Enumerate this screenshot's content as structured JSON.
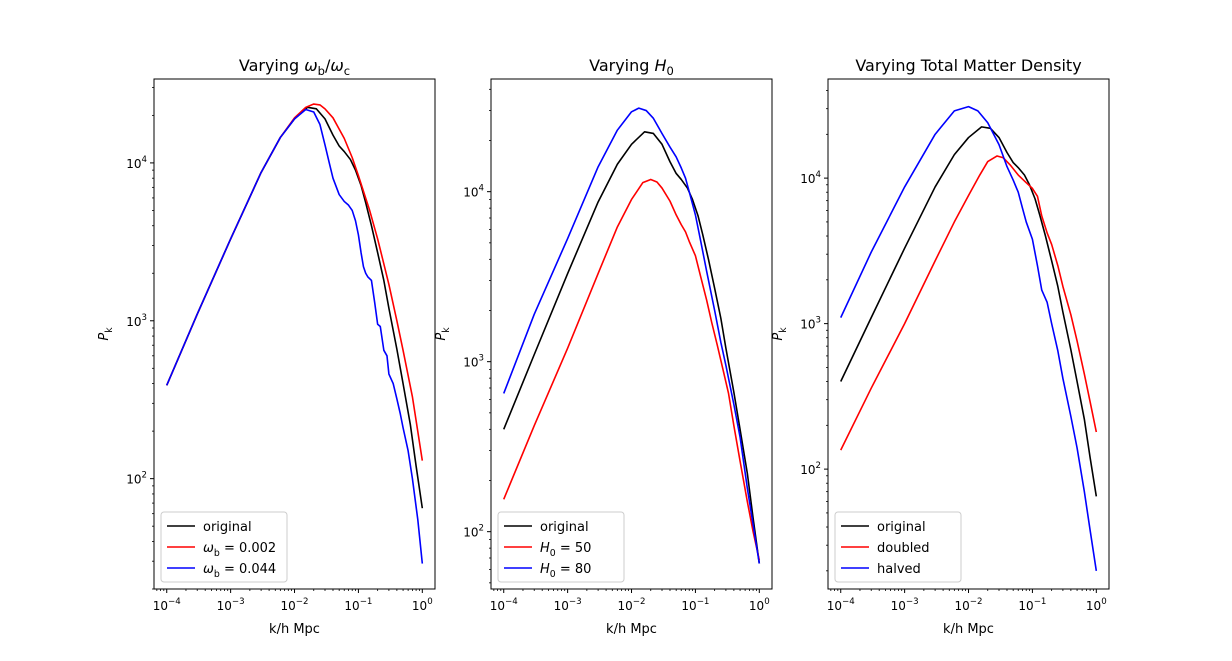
{
  "chart_data": [
    {
      "type": "line",
      "title": "Varying ωb/ωc",
      "title_parts": [
        {
          "t": "Varying "
        },
        {
          "t": "ω",
          "i": true
        },
        {
          "t": "b",
          "sub": true
        },
        {
          "t": "/"
        },
        {
          "t": "ω",
          "i": true
        },
        {
          "t": "c",
          "sub": true
        }
      ],
      "xlabel": "k/h Mpc",
      "ylabel": "Pk",
      "ylabel_parts": [
        {
          "t": "P",
          "i": true
        },
        {
          "t": "k",
          "sub": true
        }
      ],
      "xscale": "log",
      "yscale": "log",
      "xlim": [
        6.32e-05,
        1.58
      ],
      "ylim": [
        20,
        34000
      ],
      "xticks": [
        0.0001,
        0.001,
        0.01,
        0.1,
        1
      ],
      "xtick_labels": [
        [
          {
            "t": "10"
          },
          {
            "t": "−4",
            "sup": true
          }
        ],
        [
          {
            "t": "10"
          },
          {
            "t": "−3",
            "sup": true
          }
        ],
        [
          {
            "t": "10"
          },
          {
            "t": "−2",
            "sup": true
          }
        ],
        [
          {
            "t": "10"
          },
          {
            "t": "−1",
            "sup": true
          }
        ],
        [
          {
            "t": "10"
          },
          {
            "t": "0",
            "sup": true
          }
        ]
      ],
      "yticks": [
        100,
        1000,
        10000
      ],
      "ytick_labels": [
        [
          {
            "t": "10"
          },
          {
            "t": "2",
            "sup": true
          }
        ],
        [
          {
            "t": "10"
          },
          {
            "t": "3",
            "sup": true
          }
        ],
        [
          {
            "t": "10"
          },
          {
            "t": "4",
            "sup": true
          }
        ]
      ],
      "grid": false,
      "legend": "lower-left",
      "series": [
        {
          "name": "original",
          "legend_parts": [
            {
              "t": "original"
            }
          ],
          "color": "#000000",
          "x": [
            0.0001,
            0.0003,
            0.001,
            0.003,
            0.006,
            0.01,
            0.016,
            0.022,
            0.03,
            0.04,
            0.05,
            0.06,
            0.075,
            0.09,
            0.11,
            0.13,
            0.16,
            0.2,
            0.25,
            0.3,
            0.4,
            0.5,
            0.65,
            0.8,
            1.0
          ],
          "y": [
            390,
            1100,
            3300,
            8700,
            14500,
            19000,
            22500,
            22000,
            19000,
            15000,
            12800,
            11800,
            10500,
            9000,
            7200,
            5600,
            4000,
            2700,
            1800,
            1200,
            660,
            400,
            220,
            120,
            65
          ]
        },
        {
          "name": "ωb = 0.002",
          "legend_parts": [
            {
              "t": "ω",
              "i": true
            },
            {
              "t": "b",
              "sub": true
            },
            {
              "t": " = 0.002"
            }
          ],
          "color": "#ff0000",
          "x": [
            0.0001,
            0.0003,
            0.001,
            0.003,
            0.006,
            0.01,
            0.015,
            0.02,
            0.025,
            0.03,
            0.04,
            0.06,
            0.08,
            0.1,
            0.15,
            0.2,
            0.3,
            0.4,
            0.5,
            0.7,
            1.0
          ],
          "y": [
            390,
            1100,
            3300,
            8700,
            14500,
            19300,
            22500,
            23600,
            23300,
            22000,
            19300,
            14300,
            10800,
            8300,
            5000,
            3300,
            1700,
            1000,
            650,
            330,
            130
          ]
        },
        {
          "name": "ωb = 0.044",
          "legend_parts": [
            {
              "t": "ω",
              "i": true
            },
            {
              "t": "b",
              "sub": true
            },
            {
              "t": " = 0.044"
            }
          ],
          "color": "#0000ff",
          "x": [
            0.0001,
            0.0003,
            0.001,
            0.003,
            0.006,
            0.01,
            0.015,
            0.02,
            0.025,
            0.03,
            0.035,
            0.04,
            0.05,
            0.06,
            0.07,
            0.08,
            0.09,
            0.1,
            0.11,
            0.12,
            0.13,
            0.14,
            0.16,
            0.18,
            0.2,
            0.22,
            0.25,
            0.28,
            0.3,
            0.35,
            0.4,
            0.45,
            0.5,
            0.6,
            0.7,
            0.85,
            1.0
          ],
          "y": [
            390,
            1100,
            3300,
            8700,
            14500,
            19000,
            21800,
            21000,
            17500,
            13000,
            10000,
            8000,
            6300,
            5700,
            5400,
            5000,
            4300,
            3500,
            2700,
            2200,
            2000,
            1900,
            1800,
            1300,
            950,
            920,
            650,
            600,
            460,
            400,
            320,
            260,
            210,
            150,
            100,
            55,
            29
          ]
        }
      ]
    },
    {
      "type": "line",
      "title": "Varying H0",
      "title_parts": [
        {
          "t": "Varying "
        },
        {
          "t": "H",
          "i": true
        },
        {
          "t": "0",
          "sub": true
        }
      ],
      "xlabel": "k/h Mpc",
      "ylabel": "Pk",
      "ylabel_parts": [
        {
          "t": "P",
          "i": true
        },
        {
          "t": "k",
          "sub": true
        }
      ],
      "xscale": "log",
      "yscale": "log",
      "xlim": [
        6.32e-05,
        1.58
      ],
      "ylim": [
        46,
        46000
      ],
      "xticks": [
        0.0001,
        0.001,
        0.01,
        0.1,
        1
      ],
      "xtick_labels": [
        [
          {
            "t": "10"
          },
          {
            "t": "−4",
            "sup": true
          }
        ],
        [
          {
            "t": "10"
          },
          {
            "t": "−3",
            "sup": true
          }
        ],
        [
          {
            "t": "10"
          },
          {
            "t": "−2",
            "sup": true
          }
        ],
        [
          {
            "t": "10"
          },
          {
            "t": "−1",
            "sup": true
          }
        ],
        [
          {
            "t": "10"
          },
          {
            "t": "0",
            "sup": true
          }
        ]
      ],
      "yticks": [
        100,
        1000,
        10000
      ],
      "ytick_labels": [
        [
          {
            "t": "10"
          },
          {
            "t": "2",
            "sup": true
          }
        ],
        [
          {
            "t": "10"
          },
          {
            "t": "3",
            "sup": true
          }
        ],
        [
          {
            "t": "10"
          },
          {
            "t": "4",
            "sup": true
          }
        ]
      ],
      "grid": false,
      "legend": "lower-left",
      "series": [
        {
          "name": "original",
          "legend_parts": [
            {
              "t": "original"
            }
          ],
          "color": "#000000",
          "x": [
            0.0001,
            0.0003,
            0.001,
            0.003,
            0.006,
            0.01,
            0.016,
            0.022,
            0.03,
            0.04,
            0.05,
            0.06,
            0.075,
            0.09,
            0.11,
            0.13,
            0.16,
            0.2,
            0.25,
            0.3,
            0.4,
            0.5,
            0.65,
            0.8,
            1.0
          ],
          "y": [
            400,
            1100,
            3300,
            8700,
            14500,
            19000,
            22500,
            22000,
            19000,
            15000,
            12800,
            11800,
            10500,
            9000,
            7200,
            5600,
            4000,
            2700,
            1800,
            1200,
            660,
            400,
            220,
            120,
            65
          ]
        },
        {
          "name": "H0 = 50",
          "legend_parts": [
            {
              "t": "H",
              "i": true
            },
            {
              "t": "0",
              "sub": true
            },
            {
              "t": " = 50"
            }
          ],
          "color": "#ff0000",
          "x": [
            0.0001,
            0.0003,
            0.001,
            0.003,
            0.006,
            0.01,
            0.015,
            0.02,
            0.025,
            0.03,
            0.04,
            0.05,
            0.06,
            0.07,
            0.08,
            0.1,
            0.12,
            0.15,
            0.18,
            0.22,
            0.27,
            0.33,
            0.4,
            0.5,
            0.65,
            0.8,
            1.0
          ],
          "y": [
            155,
            420,
            1200,
            3300,
            6200,
            9000,
            11300,
            11800,
            11400,
            10500,
            8800,
            7300,
            6400,
            5800,
            5100,
            4200,
            3200,
            2300,
            1700,
            1250,
            900,
            650,
            420,
            260,
            150,
            100,
            68
          ]
        },
        {
          "name": "H0 = 80",
          "legend_parts": [
            {
              "t": "H",
              "i": true
            },
            {
              "t": "0",
              "sub": true
            },
            {
              "t": " = 80"
            }
          ],
          "color": "#0000ff",
          "x": [
            0.0001,
            0.0003,
            0.001,
            0.003,
            0.006,
            0.01,
            0.013,
            0.017,
            0.022,
            0.03,
            0.04,
            0.05,
            0.06,
            0.07,
            0.08,
            0.1,
            0.12,
            0.15,
            0.2,
            0.25,
            0.3,
            0.4,
            0.5,
            0.65,
            0.8,
            1.0
          ],
          "y": [
            650,
            1900,
            5300,
            14000,
            23000,
            29500,
            31000,
            30000,
            27000,
            22000,
            18300,
            16000,
            13800,
            12000,
            10000,
            7300,
            5200,
            3400,
            2000,
            1300,
            950,
            560,
            360,
            180,
            110,
            65
          ]
        }
      ]
    },
    {
      "type": "line",
      "title": "Varying Total Matter Density",
      "title_parts": [
        {
          "t": "Varying Total Matter Density"
        }
      ],
      "xlabel": "k/h Mpc",
      "ylabel": "Pk",
      "ylabel_parts": [
        {
          "t": "P",
          "i": true
        },
        {
          "t": "k",
          "sub": true
        }
      ],
      "xscale": "log",
      "yscale": "log",
      "xlim": [
        6.32e-05,
        1.58
      ],
      "ylim": [
        15,
        48000
      ],
      "xticks": [
        0.0001,
        0.001,
        0.01,
        0.1,
        1
      ],
      "xtick_labels": [
        [
          {
            "t": "10"
          },
          {
            "t": "−4",
            "sup": true
          }
        ],
        [
          {
            "t": "10"
          },
          {
            "t": "−3",
            "sup": true
          }
        ],
        [
          {
            "t": "10"
          },
          {
            "t": "−2",
            "sup": true
          }
        ],
        [
          {
            "t": "10"
          },
          {
            "t": "−1",
            "sup": true
          }
        ],
        [
          {
            "t": "10"
          },
          {
            "t": "0",
            "sup": true
          }
        ]
      ],
      "yticks": [
        100,
        1000,
        10000
      ],
      "ytick_labels": [
        [
          {
            "t": "10"
          },
          {
            "t": "2",
            "sup": true
          }
        ],
        [
          {
            "t": "10"
          },
          {
            "t": "3",
            "sup": true
          }
        ],
        [
          {
            "t": "10"
          },
          {
            "t": "4",
            "sup": true
          }
        ]
      ],
      "grid": false,
      "legend": "lower-left",
      "series": [
        {
          "name": "original",
          "legend_parts": [
            {
              "t": "original"
            }
          ],
          "color": "#000000",
          "x": [
            0.0001,
            0.0003,
            0.001,
            0.003,
            0.006,
            0.01,
            0.016,
            0.022,
            0.03,
            0.04,
            0.05,
            0.06,
            0.075,
            0.09,
            0.11,
            0.13,
            0.16,
            0.2,
            0.25,
            0.3,
            0.4,
            0.5,
            0.65,
            0.8,
            1.0
          ],
          "y": [
            400,
            1100,
            3300,
            8700,
            14500,
            19000,
            22500,
            22000,
            19000,
            15000,
            12800,
            11800,
            10500,
            9000,
            7200,
            5600,
            4000,
            2700,
            1800,
            1200,
            660,
            400,
            220,
            120,
            65
          ]
        },
        {
          "name": "doubled",
          "legend_parts": [
            {
              "t": "doubled"
            }
          ],
          "color": "#ff0000",
          "x": [
            0.0001,
            0.0003,
            0.001,
            0.003,
            0.006,
            0.01,
            0.015,
            0.02,
            0.028,
            0.035,
            0.045,
            0.06,
            0.08,
            0.1,
            0.12,
            0.14,
            0.17,
            0.2,
            0.25,
            0.3,
            0.4,
            0.5,
            0.65,
            0.8,
            1.0
          ],
          "y": [
            135,
            360,
            1000,
            2700,
            5000,
            7600,
            10500,
            13000,
            14200,
            13800,
            12300,
            10500,
            9300,
            8500,
            7500,
            5500,
            4200,
            3500,
            2500,
            1800,
            1150,
            760,
            450,
            290,
            180
          ]
        },
        {
          "name": "halved",
          "legend_parts": [
            {
              "t": "halved"
            }
          ],
          "color": "#0000ff",
          "x": [
            0.0001,
            0.0003,
            0.001,
            0.003,
            0.006,
            0.01,
            0.014,
            0.02,
            0.03,
            0.04,
            0.05,
            0.06,
            0.07,
            0.08,
            0.1,
            0.12,
            0.14,
            0.17,
            0.2,
            0.25,
            0.3,
            0.4,
            0.5,
            0.65,
            0.8,
            1.0
          ],
          "y": [
            1100,
            3100,
            8700,
            20000,
            29000,
            31000,
            29000,
            24000,
            17000,
            12000,
            9700,
            8000,
            6200,
            5000,
            3800,
            2500,
            1700,
            1400,
            1000,
            650,
            420,
            230,
            140,
            70,
            38,
            20
          ]
        }
      ]
    }
  ]
}
